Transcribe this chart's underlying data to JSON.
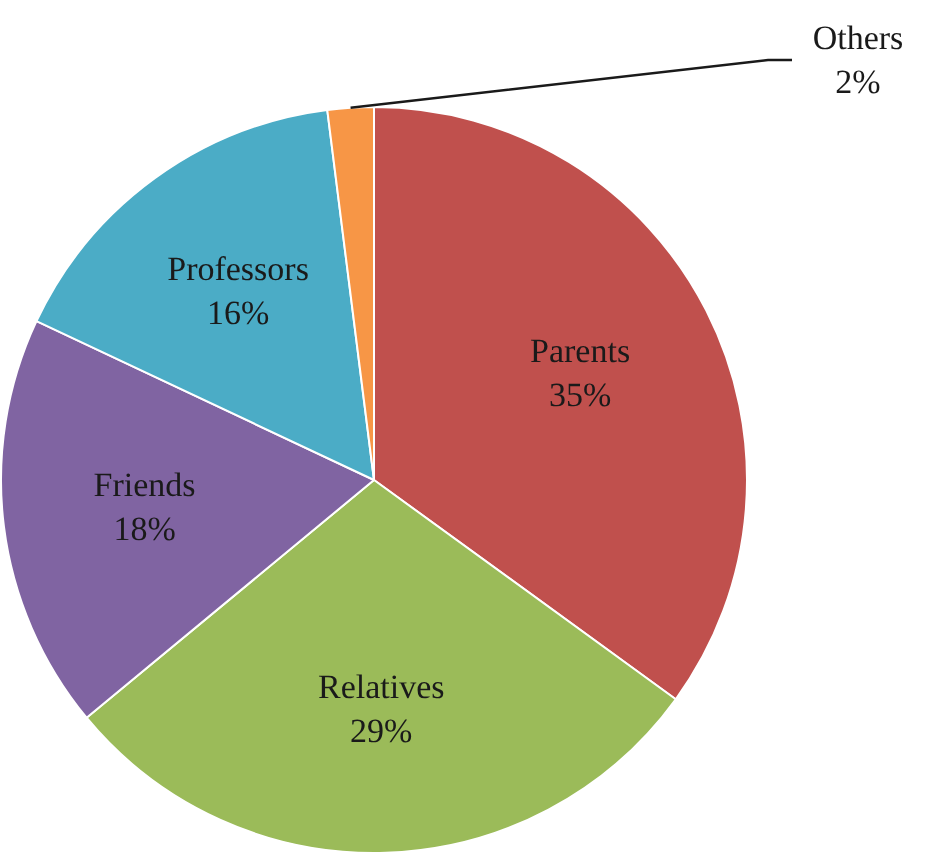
{
  "chart_data": {
    "type": "pie",
    "categories": [
      "Parents",
      "Relatives",
      "Friends",
      "Professors",
      "Others"
    ],
    "values": [
      35,
      29,
      18,
      16,
      2
    ],
    "value_labels": [
      "35%",
      "29%",
      "18%",
      "16%",
      "2%"
    ],
    "colors": [
      "#c0504d",
      "#9bbb59",
      "#8064a2",
      "#4bacc6",
      "#f79646"
    ],
    "legend": false
  }
}
